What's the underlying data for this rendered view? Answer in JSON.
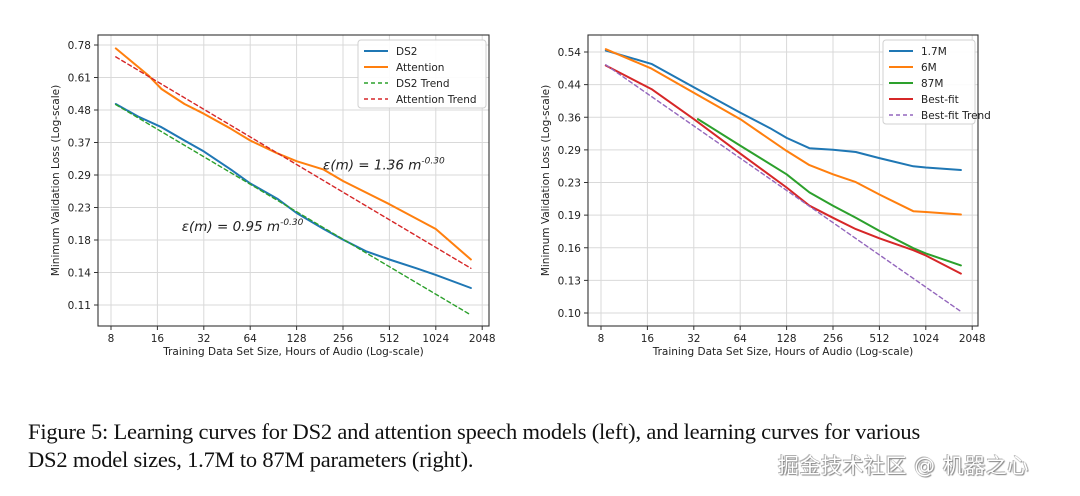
{
  "chart_data": [
    {
      "type": "line",
      "panel": "left",
      "title": "",
      "xlabel": "Training Data Set Size, Hours of Audio (Log-scale)",
      "ylabel": "Minimum Validation Loss (Log-scale)",
      "xscale": "log2",
      "yscale": "log",
      "xticks": [
        8,
        16,
        32,
        64,
        128,
        256,
        512,
        1024,
        2048
      ],
      "xtick_labels": [
        "8",
        "16",
        "32",
        "64",
        "128",
        "256",
        "512",
        "1024",
        "2048"
      ],
      "yticks": [
        0.78,
        0.61,
        0.48,
        0.37,
        0.29,
        0.23,
        0.18,
        0.14,
        0.11
      ],
      "ytick_labels": [
        "0.78",
        "0.61",
        "0.48",
        "0.37",
        "0.29",
        "0.23",
        "0.18",
        "0.14",
        "0.11"
      ],
      "grid": true,
      "legend_position": "top-right",
      "series": [
        {
          "name": "DS2",
          "color": "#1f77b4",
          "style": "solid",
          "x": [
            8.6,
            12,
            17,
            24,
            32,
            48,
            64,
            96,
            128,
            192,
            256,
            360,
            512,
            768,
            1024,
            1730
          ],
          "y": [
            0.5,
            0.455,
            0.42,
            0.38,
            0.35,
            0.305,
            0.275,
            0.245,
            0.22,
            0.195,
            0.18,
            0.165,
            0.155,
            0.145,
            0.138,
            0.125
          ]
        },
        {
          "name": "Attention",
          "color": "#ff7f0e",
          "style": "solid",
          "x": [
            8.6,
            14,
            17,
            24,
            32,
            48,
            64,
            96,
            128,
            192,
            256,
            512,
            1024,
            1730
          ],
          "y": [
            0.76,
            0.62,
            0.56,
            0.5,
            0.465,
            0.415,
            0.38,
            0.345,
            0.325,
            0.305,
            0.28,
            0.235,
            0.195,
            0.155
          ]
        },
        {
          "name": "DS2 Trend",
          "color": "#2ca02c",
          "style": "dashed",
          "x": [
            8.6,
            1730
          ],
          "y": [
            0.498,
            0.102
          ]
        },
        {
          "name": "Attention Trend",
          "color": "#d62728",
          "style": "dashed",
          "x": [
            8.6,
            1730
          ],
          "y": [
            0.713,
            0.145
          ]
        }
      ],
      "annotations": [
        {
          "text": "ε(m) = 1.36 m",
          "sup": "-0.30",
          "x": 190,
          "y": 0.305
        },
        {
          "text": "ε(m) = 0.95 m",
          "sup": "-0.30",
          "x": 23,
          "y": 0.192
        }
      ]
    },
    {
      "type": "line",
      "panel": "right",
      "title": "",
      "xlabel": "Training Data Set Size, Hours of Audio (Log-scale)",
      "ylabel": "Minimum Validation Loss (Log-scale)",
      "xscale": "log2",
      "yscale": "log",
      "xticks": [
        8,
        16,
        32,
        64,
        128,
        256,
        512,
        1024,
        2048
      ],
      "xtick_labels": [
        "8",
        "16",
        "32",
        "64",
        "128",
        "256",
        "512",
        "1024",
        "2048"
      ],
      "yticks": [
        0.54,
        0.44,
        0.36,
        0.29,
        0.23,
        0.19,
        0.16,
        0.13,
        0.1
      ],
      "ytick_labels": [
        "0.54",
        "0.44",
        "0.36",
        "0.29",
        "0.23",
        "0.19",
        "0.16",
        "0.13",
        "0.10"
      ],
      "grid": true,
      "legend_position": "top-right",
      "series": [
        {
          "name": "1.7M",
          "color": "#1f77b4",
          "style": "solid",
          "x": [
            8.6,
            17,
            32,
            64,
            100,
            128,
            180,
            256,
            360,
            512,
            850,
            1024,
            1730
          ],
          "y": [
            0.545,
            0.5,
            0.43,
            0.365,
            0.33,
            0.31,
            0.29,
            0.287,
            0.283,
            0.272,
            0.258,
            0.256,
            0.252
          ]
        },
        {
          "name": "6M",
          "color": "#ff7f0e",
          "style": "solid",
          "x": [
            8.6,
            17,
            32,
            64,
            128,
            180,
            256,
            360,
            512,
            850,
            1024,
            1730
          ],
          "y": [
            0.55,
            0.485,
            0.415,
            0.35,
            0.285,
            0.26,
            0.245,
            0.233,
            0.215,
            0.193,
            0.192,
            0.189
          ]
        },
        {
          "name": "87M",
          "color": "#2ca02c",
          "style": "solid",
          "x": [
            34,
            64,
            128,
            180,
            256,
            360,
            512,
            850,
            1024,
            1730
          ],
          "y": [
            0.35,
            0.295,
            0.245,
            0.218,
            0.2,
            0.185,
            0.17,
            0.152,
            0.147,
            0.136
          ]
        },
        {
          "name": "Best-fit",
          "color": "#d62728",
          "style": "solid",
          "x": [
            8.6,
            17,
            32,
            64,
            128,
            180,
            256,
            360,
            512,
            850,
            1024,
            1730
          ],
          "y": [
            0.495,
            0.425,
            0.35,
            0.28,
            0.225,
            0.2,
            0.185,
            0.172,
            0.162,
            0.15,
            0.145,
            0.129
          ]
        },
        {
          "name": "Best-fit Trend",
          "color": "#9467bd",
          "style": "dashed",
          "x": [
            8.6,
            1730
          ],
          "y": [
            0.497,
            0.101
          ]
        }
      ],
      "annotations": []
    }
  ],
  "caption": {
    "line1": "Figure 5: Learning curves for DS2 and attention speech models (left), and learning curves for various",
    "line2": "DS2 model sizes, 1.7M to 87M parameters (right)."
  },
  "watermark": "掘金技术社区 @ 机器之心"
}
